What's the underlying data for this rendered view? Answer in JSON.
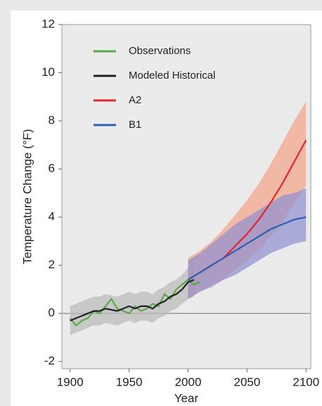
{
  "chart_data": {
    "type": "line",
    "xlabel": "Year",
    "ylabel": "Temperature Change (°F)",
    "xlim": [
      1893,
      2104
    ],
    "ylim": [
      -2.3,
      12
    ],
    "xticks": [
      1900,
      1950,
      2000,
      2050,
      2100
    ],
    "yticks": [
      -2,
      0,
      2,
      4,
      6,
      8,
      10,
      12
    ],
    "legend": "upper left",
    "series": [
      {
        "name": "Observations",
        "color": "#5aa845",
        "x": [
          1900,
          1905,
          1910,
          1915,
          1920,
          1925,
          1930,
          1935,
          1940,
          1945,
          1950,
          1955,
          1960,
          1965,
          1970,
          1975,
          1980,
          1985,
          1990,
          1995,
          2000,
          2005,
          2010
        ],
        "values": [
          -0.2,
          -0.5,
          -0.3,
          -0.2,
          0.1,
          0.0,
          0.3,
          0.6,
          0.2,
          0.1,
          0.0,
          0.3,
          0.1,
          0.2,
          0.4,
          0.3,
          0.8,
          0.6,
          1.0,
          1.2,
          1.4,
          1.2,
          1.3
        ]
      },
      {
        "name": "Modeled Historical",
        "color": "#222222",
        "x": [
          1900,
          1905,
          1910,
          1915,
          1920,
          1925,
          1930,
          1935,
          1940,
          1945,
          1950,
          1955,
          1960,
          1965,
          1970,
          1975,
          1980,
          1985,
          1990,
          1995,
          2000,
          2005
        ],
        "values": [
          -0.3,
          -0.2,
          -0.1,
          0.0,
          0.1,
          0.1,
          0.2,
          0.15,
          0.1,
          0.2,
          0.3,
          0.2,
          0.3,
          0.3,
          0.2,
          0.4,
          0.5,
          0.7,
          0.8,
          1.0,
          1.3,
          1.4
        ],
        "lower": [
          -0.9,
          -0.8,
          -0.7,
          -0.6,
          -0.5,
          -0.5,
          -0.4,
          -0.45,
          -0.5,
          -0.4,
          -0.3,
          -0.4,
          -0.3,
          -0.3,
          -0.4,
          -0.2,
          -0.1,
          0.1,
          0.2,
          0.4,
          0.6,
          0.7
        ],
        "upper": [
          0.3,
          0.4,
          0.5,
          0.6,
          0.7,
          0.7,
          0.8,
          0.75,
          0.7,
          0.8,
          0.9,
          0.8,
          0.9,
          0.9,
          0.8,
          1.0,
          1.1,
          1.3,
          1.4,
          1.6,
          1.9,
          2.1
        ],
        "band_color": "#b9b9b9"
      },
      {
        "name": "A2",
        "color": "#e3262b",
        "x": [
          2000,
          2010,
          2020,
          2030,
          2040,
          2050,
          2060,
          2070,
          2080,
          2090,
          2100
        ],
        "values": [
          1.4,
          1.7,
          2.0,
          2.3,
          2.8,
          3.3,
          3.9,
          4.6,
          5.4,
          6.3,
          7.2
        ],
        "lower": [
          0.6,
          0.9,
          1.2,
          1.4,
          1.8,
          2.2,
          2.6,
          3.2,
          3.8,
          4.6,
          5.3
        ],
        "upper": [
          2.3,
          2.6,
          3.0,
          3.5,
          4.1,
          4.7,
          5.4,
          6.2,
          7.1,
          8.0,
          8.8
        ],
        "band_color": "#f4a286"
      },
      {
        "name": "B1",
        "color": "#2f5fb5",
        "x": [
          2000,
          2010,
          2020,
          2030,
          2040,
          2050,
          2060,
          2070,
          2080,
          2090,
          2100
        ],
        "values": [
          1.4,
          1.7,
          2.0,
          2.3,
          2.6,
          2.9,
          3.2,
          3.5,
          3.7,
          3.9,
          4.0
        ],
        "lower": [
          0.6,
          0.9,
          1.1,
          1.4,
          1.6,
          1.9,
          2.2,
          2.5,
          2.7,
          2.9,
          3.0
        ],
        "upper": [
          2.2,
          2.5,
          2.9,
          3.3,
          3.7,
          4.0,
          4.3,
          4.6,
          4.9,
          5.0,
          5.2
        ],
        "band_color": "#8f8fd0"
      }
    ]
  }
}
